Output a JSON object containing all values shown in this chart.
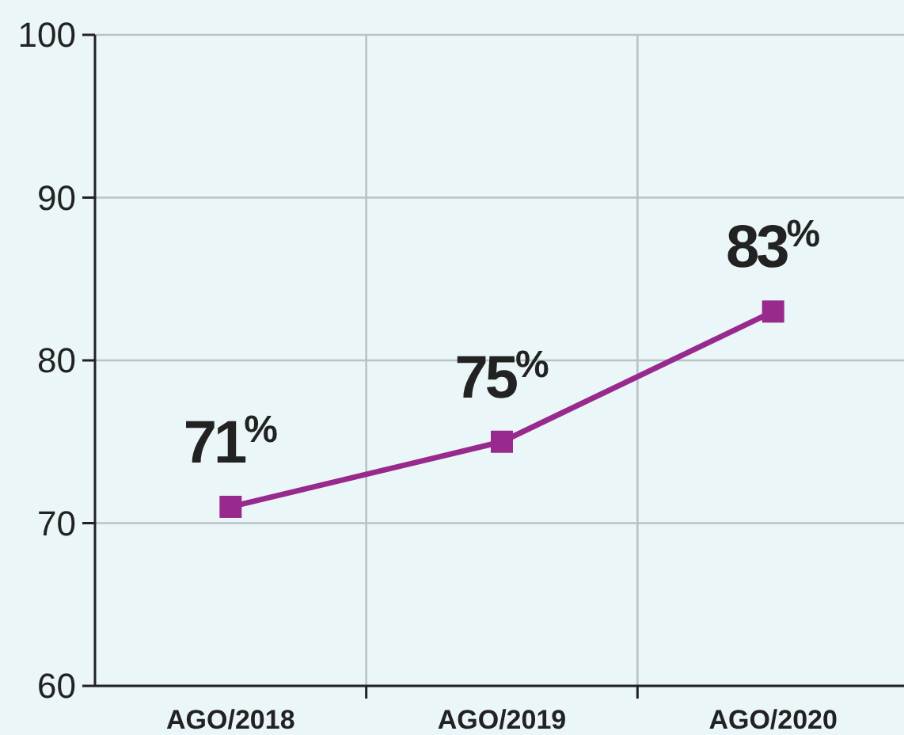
{
  "chart_data": {
    "type": "line",
    "categories": [
      "AGO/2018",
      "AGO/2019",
      "AGO/2020"
    ],
    "series": [
      {
        "color": "#982a8e",
        "values": [
          71,
          75,
          83
        ],
        "value_labels": [
          "71$^{%}$",
          "75$^{%}$",
          "83$^{%}$"
        ]
      }
    ],
    "ylim": [
      60,
      100
    ],
    "yticks": [
      60,
      70,
      80,
      90,
      100
    ],
    "grid": true,
    "marker": "square",
    "line_style": "solid"
  }
}
